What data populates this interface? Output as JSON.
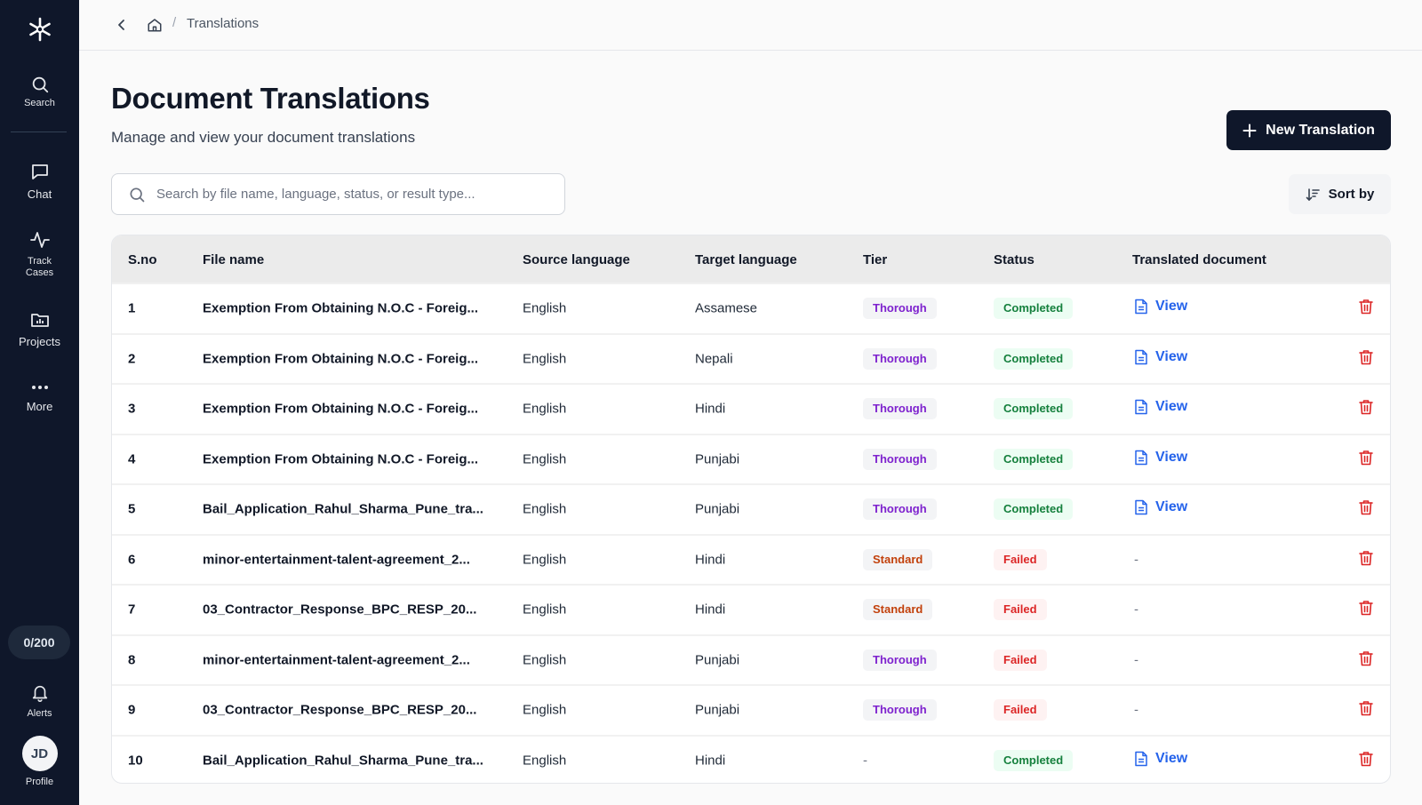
{
  "sidebar": {
    "items": [
      {
        "label": "Search",
        "icon": "search-icon"
      },
      {
        "label": "Chat",
        "icon": "chat-icon"
      },
      {
        "label_line1": "Track",
        "label_line2": "Cases",
        "icon": "activity-icon"
      },
      {
        "label": "Projects",
        "icon": "folder-icon"
      },
      {
        "label": "More",
        "icon": "more-icon"
      }
    ],
    "credits": "0/200",
    "alerts_label": "Alerts",
    "profile_label": "Profile",
    "avatar_initials": "JD"
  },
  "breadcrumb": {
    "separator": "/",
    "current": "Translations"
  },
  "header": {
    "title": "Document Translations",
    "subtitle": "Manage and view your document translations",
    "new_button_label": "New Translation"
  },
  "search": {
    "placeholder": "Search by file name, language, status, or result type...",
    "value": ""
  },
  "sort": {
    "label": "Sort by"
  },
  "table": {
    "columns": {
      "sno": "S.no",
      "file": "File name",
      "source": "Source language",
      "target": "Target language",
      "tier": "Tier",
      "status": "Status",
      "doc": "Translated document"
    },
    "rows": [
      {
        "sno": "1",
        "file": "Exemption From Obtaining N.O.C - Foreig...",
        "source": "English",
        "target": "Assamese",
        "tier": "Thorough",
        "status": "Completed",
        "doc": "View"
      },
      {
        "sno": "2",
        "file": "Exemption From Obtaining N.O.C - Foreig...",
        "source": "English",
        "target": "Nepali",
        "tier": "Thorough",
        "status": "Completed",
        "doc": "View"
      },
      {
        "sno": "3",
        "file": "Exemption From Obtaining N.O.C - Foreig...",
        "source": "English",
        "target": "Hindi",
        "tier": "Thorough",
        "status": "Completed",
        "doc": "View"
      },
      {
        "sno": "4",
        "file": "Exemption From Obtaining N.O.C - Foreig...",
        "source": "English",
        "target": "Punjabi",
        "tier": "Thorough",
        "status": "Completed",
        "doc": "View"
      },
      {
        "sno": "5",
        "file": "Bail_Application_Rahul_Sharma_Pune_tra...",
        "source": "English",
        "target": "Punjabi",
        "tier": "Thorough",
        "status": "Completed",
        "doc": "View"
      },
      {
        "sno": "6",
        "file": "minor-entertainment-talent-agreement_2...",
        "source": "English",
        "target": "Hindi",
        "tier": "Standard",
        "status": "Failed",
        "doc": "-"
      },
      {
        "sno": "7",
        "file": "03_Contractor_Response_BPC_RESP_20...",
        "source": "English",
        "target": "Hindi",
        "tier": "Standard",
        "status": "Failed",
        "doc": "-"
      },
      {
        "sno": "8",
        "file": "minor-entertainment-talent-agreement_2...",
        "source": "English",
        "target": "Punjabi",
        "tier": "Thorough",
        "status": "Failed",
        "doc": "-"
      },
      {
        "sno": "9",
        "file": "03_Contractor_Response_BPC_RESP_20...",
        "source": "English",
        "target": "Punjabi",
        "tier": "Thorough",
        "status": "Failed",
        "doc": "-"
      },
      {
        "sno": "10",
        "file": "Bail_Application_Rahul_Sharma_Pune_tra...",
        "source": "English",
        "target": "Hindi",
        "tier": "-",
        "status": "Completed",
        "doc": "View"
      }
    ]
  },
  "colors": {
    "sidebar_bg": "#0f172a",
    "primary_button": "#0f172a",
    "link": "#2563eb",
    "completed": "#15803d",
    "failed": "#dc2626",
    "thorough": "#7e22ce",
    "standard": "#c2410c",
    "delete": "#dc2626"
  }
}
